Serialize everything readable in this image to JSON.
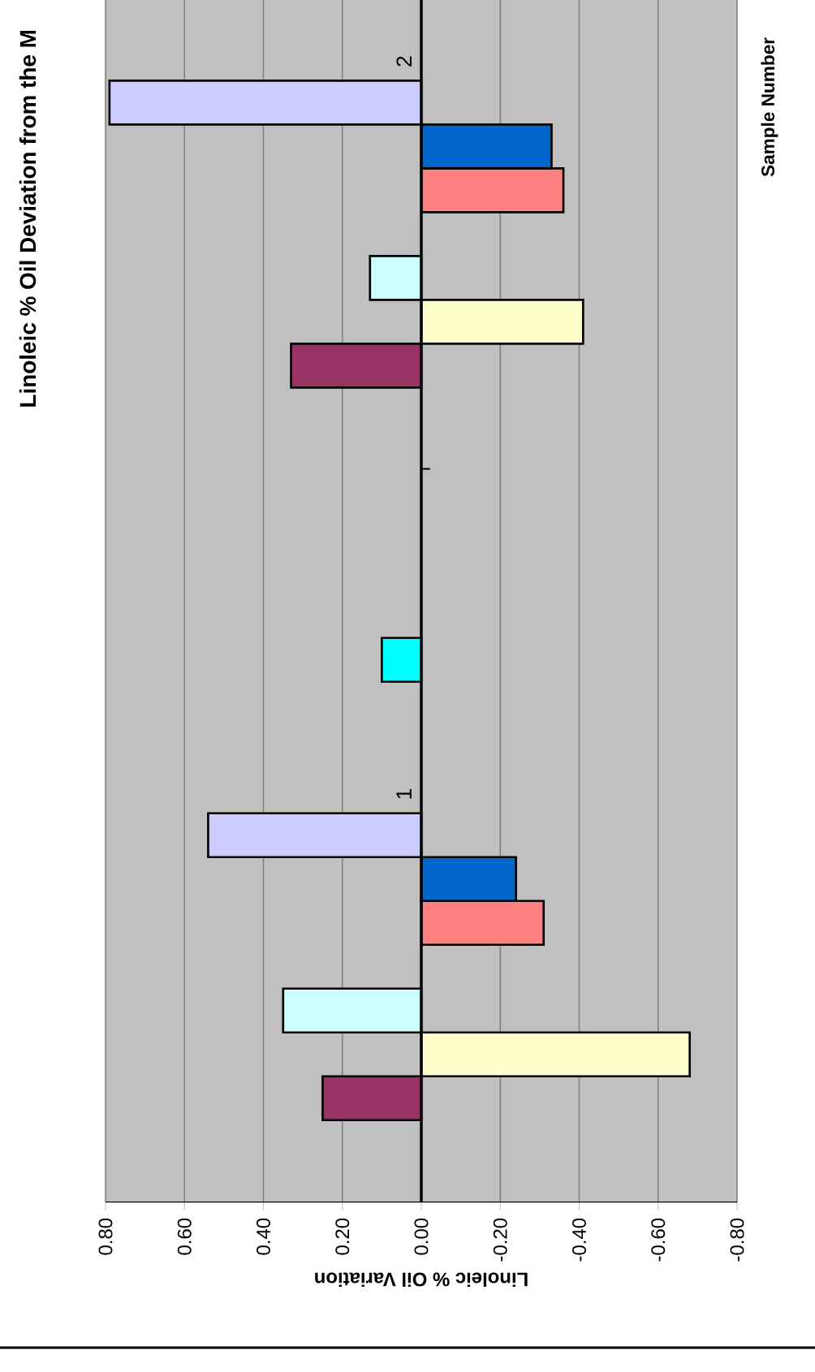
{
  "chart_data": {
    "type": "bar",
    "orientation": "horizontal",
    "title": "Linoleic % Oil Deviation from the M",
    "xlabel": "Linoleic % Oil Variation",
    "annotations": [
      "Sample Number"
    ],
    "categories": [
      "2",
      "1"
    ],
    "xlim": [
      0.8,
      -0.8
    ],
    "xticks": [
      {
        "value": 0.8,
        "label": "0.80"
      },
      {
        "value": 0.6,
        "label": "0.60"
      },
      {
        "value": 0.4,
        "label": "0.40"
      },
      {
        "value": 0.2,
        "label": "0.20"
      },
      {
        "value": 0,
        "label": "0.00"
      },
      {
        "value": -0.2,
        "label": "-0.20"
      },
      {
        "value": -0.4,
        "label": "-0.40"
      },
      {
        "value": -0.6,
        "label": "-0.60"
      },
      {
        "value": -0.8,
        "label": "-0.80"
      }
    ],
    "grid": "x",
    "series": [
      {
        "color": "#993366",
        "values": [
          0.33,
          0.25
        ]
      },
      {
        "color": "#ffffcc",
        "values": [
          -0.41,
          -0.68
        ]
      },
      {
        "color": "#ccffff",
        "values": [
          0.13,
          0.35
        ]
      },
      {
        "values": [
          null,
          null
        ]
      },
      {
        "color": "#ff8080",
        "values": [
          -0.36,
          -0.31
        ]
      },
      {
        "color": "#0066cc",
        "values": [
          -0.33,
          -0.24
        ]
      },
      {
        "color": "#ccccff",
        "values": [
          0.79,
          0.54
        ]
      },
      {
        "values": [
          null,
          null
        ]
      },
      {
        "values": [
          null,
          null
        ]
      },
      {
        "values": [
          null,
          null
        ]
      },
      {
        "color": "#00ffff",
        "values": [
          null,
          0.1
        ]
      },
      {
        "values": [
          null,
          null
        ]
      },
      {
        "values": [
          null,
          null
        ]
      }
    ]
  }
}
